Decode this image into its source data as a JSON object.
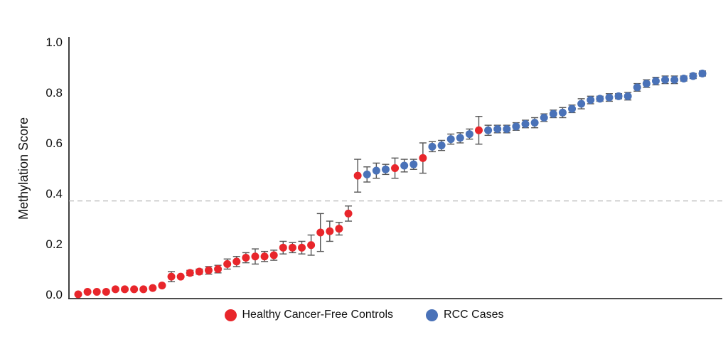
{
  "colors": {
    "controls": "#e8262b",
    "cases": "#4a72b8"
  },
  "chart_data": {
    "type": "scatter",
    "title": "",
    "xlabel": "",
    "ylabel": "Methylation Score",
    "ylim": [
      0.0,
      1.0
    ],
    "yticks": [
      "0.0",
      "0.2",
      "0.4",
      "0.6",
      "0.8",
      "1.0"
    ],
    "threshold": 0.37,
    "legend_position": "bottom",
    "series": [
      {
        "name": "Healthy Cancer-Free Controls",
        "color": "#e8262b",
        "points": [
          {
            "rank": 1,
            "y": 0.0,
            "err": 0.0
          },
          {
            "rank": 2,
            "y": 0.01,
            "err": 0.0
          },
          {
            "rank": 3,
            "y": 0.01,
            "err": 0.0
          },
          {
            "rank": 4,
            "y": 0.01,
            "err": 0.0
          },
          {
            "rank": 5,
            "y": 0.02,
            "err": 0.0
          },
          {
            "rank": 6,
            "y": 0.02,
            "err": 0.0
          },
          {
            "rank": 7,
            "y": 0.02,
            "err": 0.0
          },
          {
            "rank": 8,
            "y": 0.02,
            "err": 0.0
          },
          {
            "rank": 9,
            "y": 0.025,
            "err": 0.0
          },
          {
            "rank": 10,
            "y": 0.035,
            "err": 0.0
          },
          {
            "rank": 11,
            "y": 0.07,
            "err": 0.02
          },
          {
            "rank": 12,
            "y": 0.07,
            "err": 0.0
          },
          {
            "rank": 13,
            "y": 0.085,
            "err": 0.01
          },
          {
            "rank": 14,
            "y": 0.09,
            "err": 0.01
          },
          {
            "rank": 15,
            "y": 0.095,
            "err": 0.015
          },
          {
            "rank": 16,
            "y": 0.1,
            "err": 0.015
          },
          {
            "rank": 17,
            "y": 0.12,
            "err": 0.02
          },
          {
            "rank": 18,
            "y": 0.13,
            "err": 0.02
          },
          {
            "rank": 19,
            "y": 0.145,
            "err": 0.02
          },
          {
            "rank": 20,
            "y": 0.15,
            "err": 0.03
          },
          {
            "rank": 21,
            "y": 0.15,
            "err": 0.02
          },
          {
            "rank": 22,
            "y": 0.155,
            "err": 0.02
          },
          {
            "rank": 23,
            "y": 0.185,
            "err": 0.025
          },
          {
            "rank": 24,
            "y": 0.185,
            "err": 0.02
          },
          {
            "rank": 25,
            "y": 0.185,
            "err": 0.025
          },
          {
            "rank": 26,
            "y": 0.195,
            "err": 0.04
          },
          {
            "rank": 27,
            "y": 0.245,
            "err": 0.075
          },
          {
            "rank": 28,
            "y": 0.25,
            "err": 0.04
          },
          {
            "rank": 29,
            "y": 0.26,
            "err": 0.025
          },
          {
            "rank": 30,
            "y": 0.32,
            "err": 0.03
          },
          {
            "rank": 31,
            "y": 0.47,
            "err": 0.065
          },
          {
            "rank": 35,
            "y": 0.5,
            "err": 0.04
          },
          {
            "rank": 38,
            "y": 0.54,
            "err": 0.06
          },
          {
            "rank": 44,
            "y": 0.65,
            "err": 0.055
          }
        ]
      },
      {
        "name": "RCC Cases",
        "color": "#4a72b8",
        "points": [
          {
            "rank": 32,
            "y": 0.475,
            "err": 0.03
          },
          {
            "rank": 33,
            "y": 0.49,
            "err": 0.03
          },
          {
            "rank": 34,
            "y": 0.495,
            "err": 0.02
          },
          {
            "rank": 36,
            "y": 0.51,
            "err": 0.025
          },
          {
            "rank": 37,
            "y": 0.515,
            "err": 0.02
          },
          {
            "rank": 39,
            "y": 0.585,
            "err": 0.02
          },
          {
            "rank": 40,
            "y": 0.59,
            "err": 0.02
          },
          {
            "rank": 41,
            "y": 0.615,
            "err": 0.02
          },
          {
            "rank": 42,
            "y": 0.62,
            "err": 0.02
          },
          {
            "rank": 43,
            "y": 0.635,
            "err": 0.02
          },
          {
            "rank": 45,
            "y": 0.65,
            "err": 0.02
          },
          {
            "rank": 46,
            "y": 0.655,
            "err": 0.015
          },
          {
            "rank": 47,
            "y": 0.655,
            "err": 0.015
          },
          {
            "rank": 48,
            "y": 0.665,
            "err": 0.015
          },
          {
            "rank": 49,
            "y": 0.675,
            "err": 0.015
          },
          {
            "rank": 50,
            "y": 0.68,
            "err": 0.02
          },
          {
            "rank": 51,
            "y": 0.7,
            "err": 0.015
          },
          {
            "rank": 52,
            "y": 0.715,
            "err": 0.015
          },
          {
            "rank": 53,
            "y": 0.72,
            "err": 0.02
          },
          {
            "rank": 54,
            "y": 0.735,
            "err": 0.015
          },
          {
            "rank": 55,
            "y": 0.755,
            "err": 0.02
          },
          {
            "rank": 56,
            "y": 0.77,
            "err": 0.015
          },
          {
            "rank": 57,
            "y": 0.775,
            "err": 0.01
          },
          {
            "rank": 58,
            "y": 0.78,
            "err": 0.015
          },
          {
            "rank": 59,
            "y": 0.785,
            "err": 0.01
          },
          {
            "rank": 60,
            "y": 0.785,
            "err": 0.015
          },
          {
            "rank": 61,
            "y": 0.82,
            "err": 0.015
          },
          {
            "rank": 62,
            "y": 0.835,
            "err": 0.015
          },
          {
            "rank": 63,
            "y": 0.845,
            "err": 0.015
          },
          {
            "rank": 64,
            "y": 0.85,
            "err": 0.015
          },
          {
            "rank": 65,
            "y": 0.85,
            "err": 0.015
          },
          {
            "rank": 66,
            "y": 0.855,
            "err": 0.01
          },
          {
            "rank": 67,
            "y": 0.865,
            "err": 0.01
          },
          {
            "rank": 68,
            "y": 0.875,
            "err": 0.01
          }
        ]
      }
    ]
  }
}
